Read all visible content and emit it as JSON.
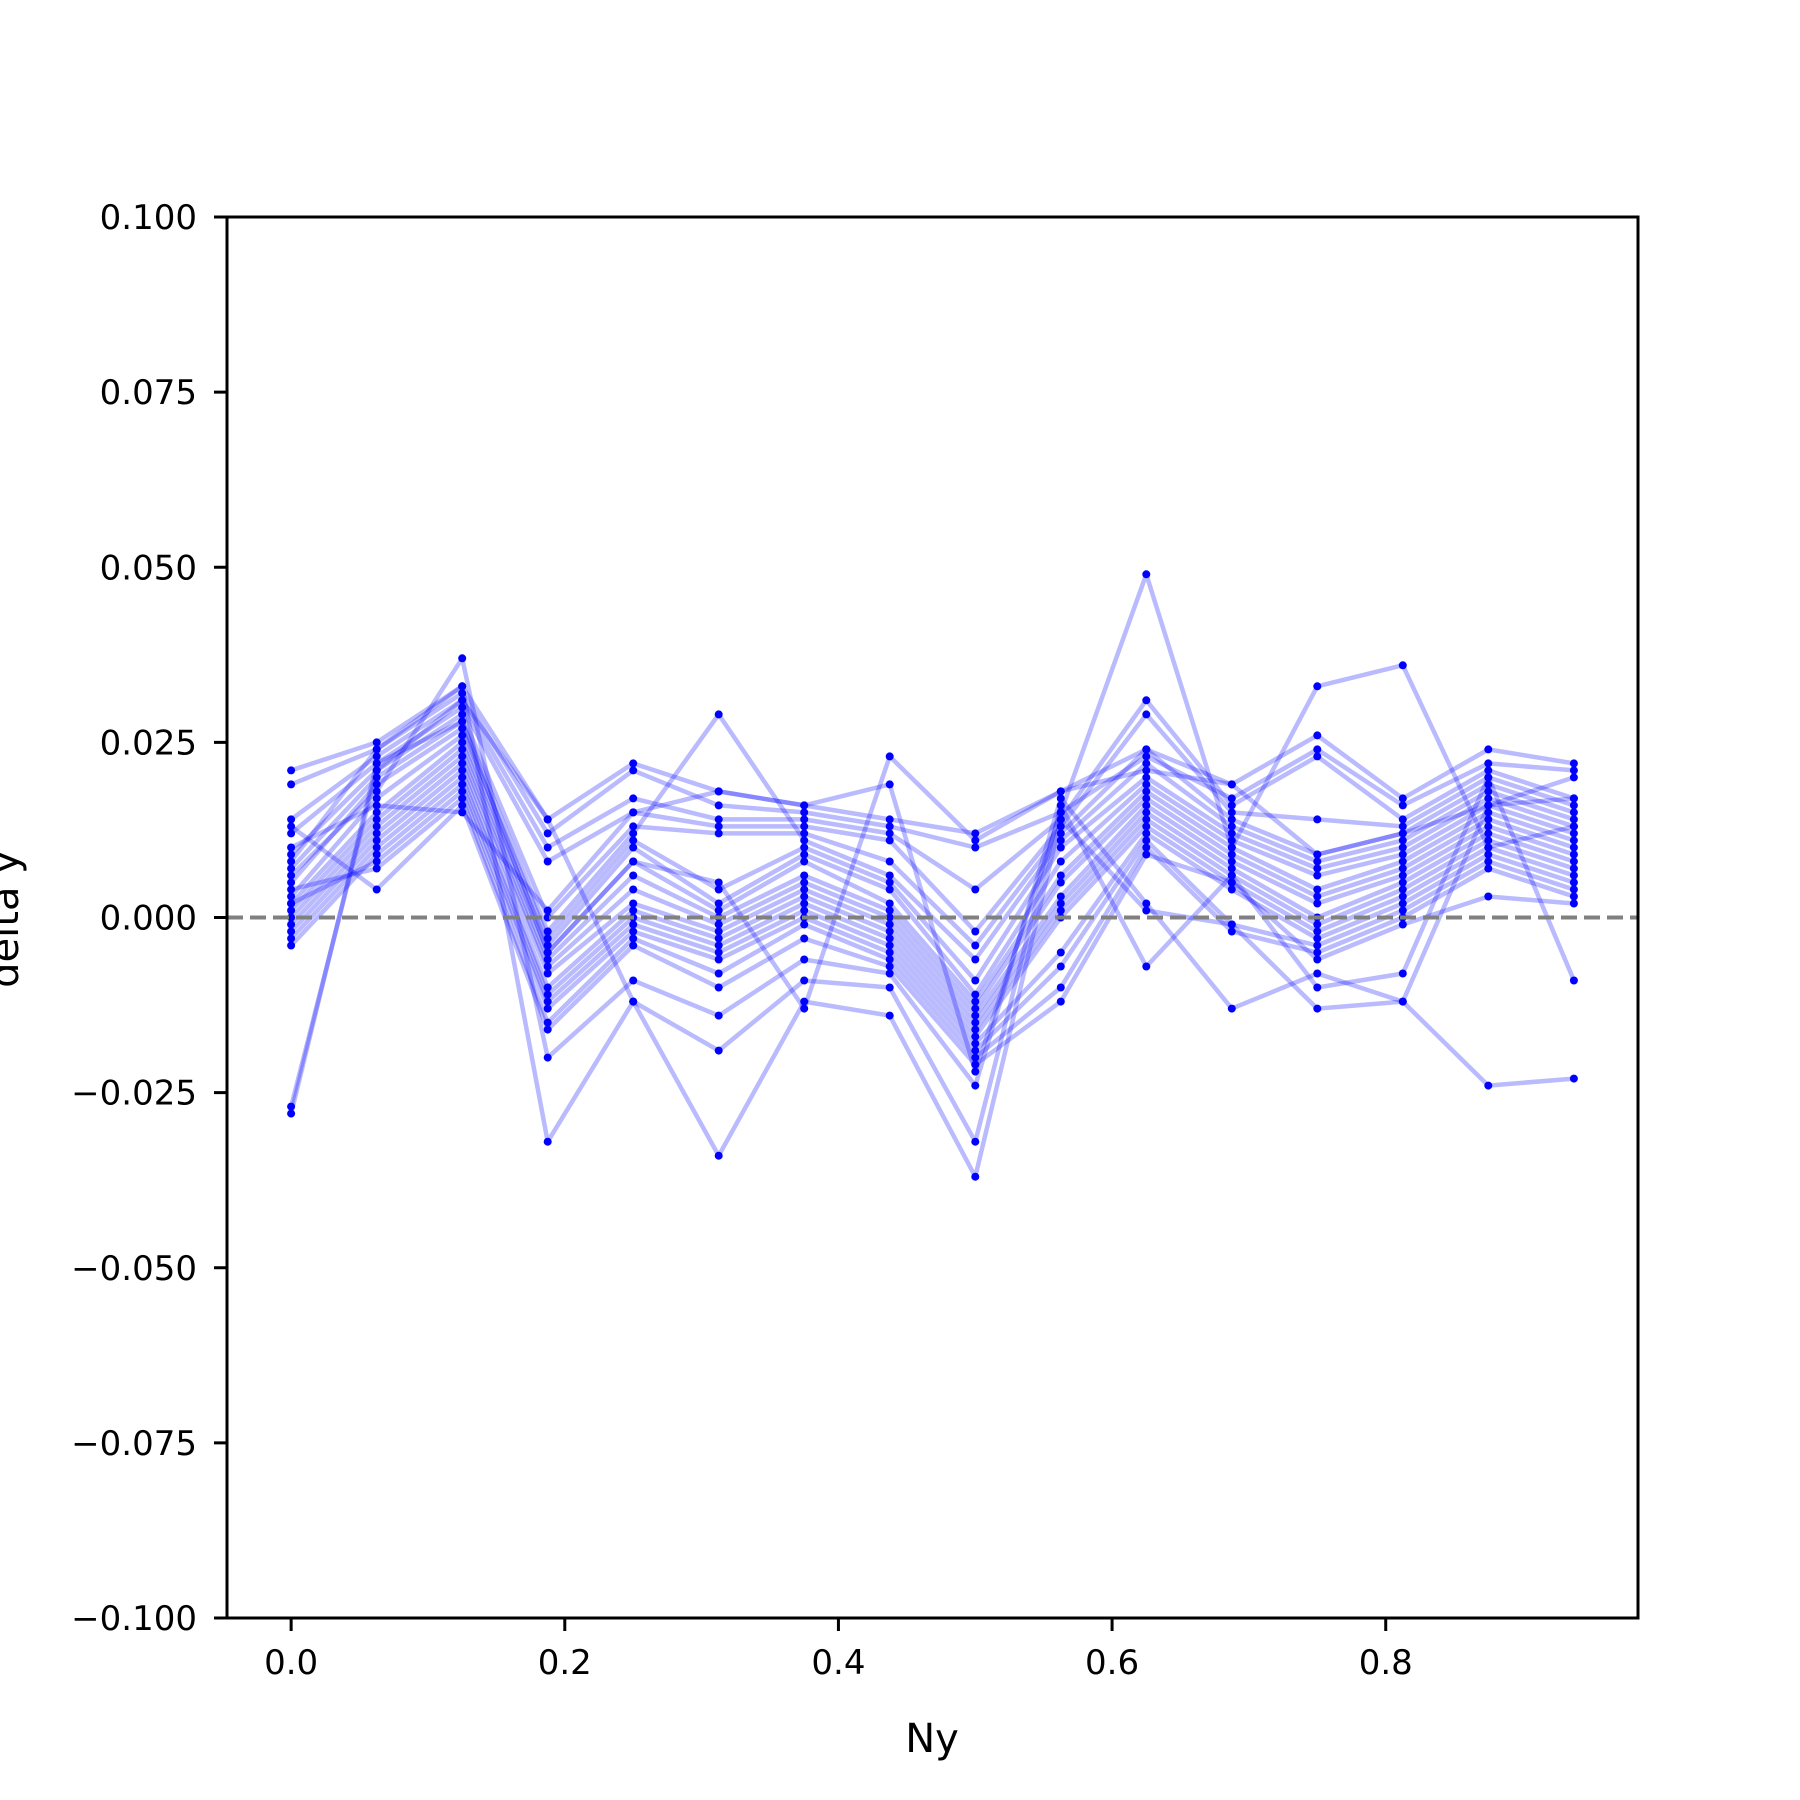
{
  "chart_data": {
    "type": "line",
    "title": "",
    "xlabel": "Ny",
    "ylabel": "delta y",
    "xlim": [
      -0.046875,
      0.984375
    ],
    "ylim": [
      -0.1,
      0.1
    ],
    "xticks": [
      0.0,
      0.2,
      0.4,
      0.6,
      0.8
    ],
    "xtick_labels": [
      "0.0",
      "0.2",
      "0.4",
      "0.6",
      "0.8"
    ],
    "yticks": [
      0.1,
      0.075,
      0.05,
      0.025,
      0.0,
      -0.025,
      -0.05,
      -0.075,
      -0.1
    ],
    "ytick_labels": [
      "0.100",
      "0.075",
      "0.050",
      "0.025",
      "0.000",
      "−0.025",
      "−0.050",
      "−0.075",
      "−0.100"
    ],
    "grid": false,
    "legend": "none",
    "reference_line": {
      "y": 0.0,
      "style": "dashed",
      "color": "#808080"
    },
    "series_color": "#0000ff",
    "series_line_alpha": 0.27,
    "x": [
      0.0,
      0.0625,
      0.125,
      0.1875,
      0.25,
      0.3125,
      0.375,
      0.4375,
      0.5,
      0.5625,
      0.625,
      0.6875,
      0.75,
      0.8125,
      0.875,
      0.9375
    ],
    "series": [
      {
        "values": [
          0.021,
          0.025,
          0.033,
          0.014,
          0.022,
          0.018,
          0.016,
          0.014,
          0.012,
          0.018,
          0.024,
          0.019,
          0.026,
          0.017,
          0.024,
          0.022
        ]
      },
      {
        "values": [
          0.019,
          0.024,
          0.032,
          0.012,
          0.021,
          0.016,
          0.015,
          0.013,
          0.01,
          0.015,
          0.023,
          0.017,
          0.024,
          0.016,
          0.022,
          0.021
        ]
      },
      {
        "values": [
          0.014,
          0.023,
          0.031,
          0.01,
          0.017,
          0.014,
          0.014,
          0.012,
          0.004,
          0.014,
          0.031,
          0.016,
          0.023,
          0.014,
          0.021,
          0.017
        ]
      },
      {
        "values": [
          0.012,
          0.022,
          0.03,
          0.008,
          0.015,
          0.013,
          0.013,
          0.011,
          -0.002,
          0.013,
          0.029,
          0.015,
          0.014,
          0.013,
          0.02,
          0.016
        ]
      },
      {
        "values": [
          0.009,
          0.021,
          0.029,
          0.0,
          0.013,
          0.012,
          0.012,
          0.008,
          -0.004,
          0.012,
          0.024,
          0.014,
          0.009,
          0.012,
          0.019,
          0.015
        ]
      },
      {
        "values": [
          0.007,
          0.02,
          0.028,
          -0.002,
          0.012,
          0.029,
          0.011,
          0.006,
          -0.006,
          0.011,
          0.022,
          0.013,
          0.008,
          0.011,
          0.018,
          0.014
        ]
      },
      {
        "values": [
          0.005,
          0.019,
          0.027,
          -0.003,
          0.011,
          0.004,
          0.01,
          0.005,
          -0.009,
          0.01,
          0.02,
          0.012,
          0.007,
          0.01,
          0.017,
          0.013
        ]
      },
      {
        "values": [
          0.003,
          0.017,
          0.026,
          -0.004,
          0.01,
          0.002,
          0.009,
          0.004,
          -0.011,
          0.008,
          0.019,
          0.011,
          0.006,
          0.009,
          0.016,
          0.012
        ]
      },
      {
        "values": [
          0.002,
          0.015,
          0.025,
          -0.005,
          0.008,
          0.001,
          0.008,
          0.002,
          -0.012,
          0.006,
          0.018,
          0.01,
          0.004,
          0.008,
          0.015,
          0.011
        ]
      },
      {
        "values": [
          0.001,
          0.014,
          0.024,
          -0.006,
          0.006,
          0.0,
          0.006,
          0.001,
          -0.013,
          0.005,
          0.017,
          0.009,
          0.003,
          0.007,
          0.014,
          0.01
        ]
      },
      {
        "values": [
          0.0,
          0.013,
          0.023,
          -0.007,
          0.004,
          -0.001,
          0.005,
          0.0,
          -0.014,
          0.003,
          0.016,
          0.008,
          0.002,
          0.006,
          0.013,
          0.009
        ]
      },
      {
        "values": [
          -0.001,
          0.012,
          0.022,
          -0.008,
          0.002,
          -0.002,
          0.004,
          -0.001,
          -0.015,
          0.002,
          0.015,
          0.007,
          0.0,
          0.005,
          0.012,
          0.008
        ]
      },
      {
        "values": [
          -0.002,
          0.011,
          0.021,
          -0.01,
          0.001,
          -0.003,
          0.003,
          -0.002,
          -0.016,
          0.001,
          0.014,
          0.006,
          -0.001,
          0.004,
          0.011,
          0.007
        ]
      },
      {
        "values": [
          -0.003,
          0.01,
          0.02,
          -0.011,
          0.0,
          -0.004,
          0.002,
          -0.003,
          -0.017,
          0.0,
          0.013,
          0.005,
          -0.002,
          0.003,
          0.01,
          0.006
        ]
      },
      {
        "values": [
          -0.004,
          0.009,
          0.019,
          -0.012,
          -0.001,
          -0.005,
          0.001,
          -0.004,
          -0.018,
          -0.005,
          0.012,
          0.004,
          -0.003,
          0.002,
          0.009,
          0.005
        ]
      },
      {
        "values": [
          0.002,
          0.008,
          0.018,
          -0.013,
          -0.002,
          -0.006,
          0.0,
          -0.005,
          -0.019,
          -0.007,
          0.011,
          -0.001,
          -0.004,
          0.001,
          0.008,
          0.004
        ]
      },
      {
        "values": [
          0.004,
          0.007,
          0.017,
          -0.015,
          -0.003,
          -0.008,
          -0.001,
          -0.006,
          -0.02,
          -0.01,
          0.01,
          -0.002,
          -0.005,
          0.0,
          0.007,
          0.003
        ]
      },
      {
        "values": [
          0.013,
          0.004,
          0.016,
          -0.016,
          -0.004,
          -0.01,
          -0.003,
          -0.007,
          -0.021,
          -0.012,
          0.009,
          0.005,
          -0.006,
          -0.001,
          0.003,
          0.002
        ]
      },
      {
        "values": [
          0.01,
          0.016,
          0.015,
          0.001,
          0.015,
          0.018,
          0.016,
          0.019,
          -0.022,
          0.015,
          0.049,
          0.01,
          0.033,
          0.036,
          0.01,
          0.013
        ]
      },
      {
        "values": [
          0.006,
          0.018,
          0.037,
          -0.02,
          -0.009,
          -0.014,
          -0.006,
          -0.008,
          -0.024,
          0.017,
          0.002,
          -0.013,
          -0.008,
          -0.012,
          0.016,
          0.017
        ]
      },
      {
        "values": [
          0.008,
          0.024,
          0.033,
          -0.032,
          -0.012,
          -0.019,
          -0.009,
          -0.01,
          -0.032,
          0.016,
          -0.007,
          0.006,
          -0.01,
          -0.008,
          0.02,
          -0.009
        ]
      },
      {
        "values": [
          -0.027,
          0.021,
          0.031,
          0.014,
          -0.012,
          -0.034,
          -0.012,
          -0.014,
          -0.037,
          0.014,
          0.001,
          -0.001,
          -0.013,
          -0.012,
          -0.024,
          -0.023
        ]
      },
      {
        "values": [
          -0.028,
          0.022,
          0.028,
          -0.005,
          0.008,
          0.005,
          -0.013,
          0.023,
          0.011,
          0.018,
          0.021,
          0.019,
          0.009,
          0.012,
          0.016,
          0.02
        ]
      }
    ]
  }
}
